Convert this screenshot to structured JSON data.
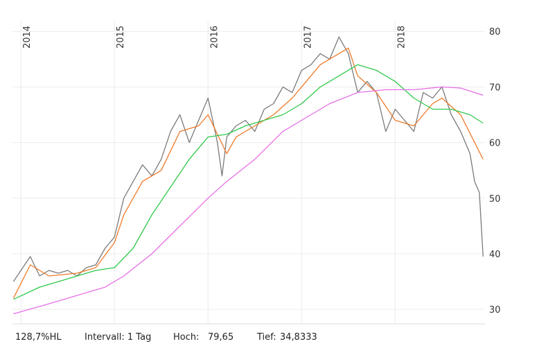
{
  "chart_data": {
    "type": "line",
    "xlim": [
      2013.91,
      2018.96
    ],
    "xticks": [
      2014,
      2015,
      2016,
      2017,
      2018
    ],
    "ylim": [
      27.4,
      81.9
    ],
    "yticks": [
      30,
      40,
      50,
      60,
      70,
      80
    ],
    "grid": true,
    "series": [
      {
        "color": "#7a7a7a",
        "x": [
          2013.92,
          2014.0,
          2014.1,
          2014.2,
          2014.3,
          2014.4,
          2014.5,
          2014.6,
          2014.7,
          2014.8,
          2014.9,
          2015.0,
          2015.1,
          2015.2,
          2015.3,
          2015.4,
          2015.5,
          2015.6,
          2015.7,
          2015.8,
          2015.9,
          2016.0,
          2016.1,
          2016.15,
          2016.2,
          2016.3,
          2016.4,
          2016.5,
          2016.6,
          2016.7,
          2016.8,
          2016.9,
          2017.0,
          2017.1,
          2017.2,
          2017.3,
          2017.4,
          2017.5,
          2017.6,
          2017.7,
          2017.8,
          2017.9,
          2018.0,
          2018.1,
          2018.2,
          2018.3,
          2018.4,
          2018.5,
          2018.6,
          2018.7,
          2018.8,
          2018.85,
          2018.9,
          2018.94
        ],
        "values": [
          35,
          37,
          39.5,
          36,
          37,
          36.5,
          37,
          36,
          37.5,
          38,
          41,
          43,
          50,
          53,
          56,
          54,
          57,
          62,
          65,
          60,
          64,
          68,
          60,
          54,
          61,
          63,
          64,
          62,
          66,
          67,
          70,
          69,
          73,
          74,
          76,
          75,
          79,
          76,
          69,
          71,
          69,
          62,
          66,
          64,
          62,
          69,
          68,
          70,
          65,
          62,
          58,
          53,
          51,
          39.5
        ]
      },
      {
        "color": "#f07a28",
        "x": [
          2013.92,
          2014.1,
          2014.3,
          2014.6,
          2014.8,
          2015.0,
          2015.1,
          2015.3,
          2015.5,
          2015.7,
          2015.9,
          2016.0,
          2016.2,
          2016.3,
          2016.5,
          2016.7,
          2016.9,
          2017.0,
          2017.2,
          2017.4,
          2017.5,
          2017.6,
          2017.8,
          2018.0,
          2018.2,
          2018.4,
          2018.5,
          2018.7,
          2018.85,
          2018.94
        ],
        "values": [
          32,
          38,
          36,
          36.5,
          37.5,
          42,
          47,
          53,
          55,
          62,
          63,
          65,
          58,
          61,
          63,
          65,
          68,
          70,
          74,
          76,
          77,
          72,
          69,
          64,
          63,
          67,
          68,
          65,
          60,
          57
        ]
      },
      {
        "color": "#2ec94a",
        "x": [
          2013.92,
          2014.2,
          2014.5,
          2014.8,
          2015.0,
          2015.2,
          2015.4,
          2015.6,
          2015.8,
          2016.0,
          2016.2,
          2016.4,
          2016.6,
          2016.8,
          2017.0,
          2017.2,
          2017.4,
          2017.6,
          2017.8,
          2018.0,
          2018.2,
          2018.4,
          2018.6,
          2018.8,
          2018.94
        ],
        "values": [
          31.8,
          34,
          35.5,
          37,
          37.5,
          41,
          47,
          52,
          57,
          61,
          61.5,
          63,
          64,
          65,
          67,
          70,
          72,
          74,
          73,
          71,
          68,
          66,
          66,
          65,
          63.5
        ]
      },
      {
        "color": "#e66ee6",
        "x": [
          2013.92,
          2014.3,
          2014.6,
          2014.9,
          2015.1,
          2015.4,
          2015.7,
          2016.0,
          2016.2,
          2016.5,
          2016.8,
          2017.0,
          2017.3,
          2017.6,
          2017.9,
          2018.2,
          2018.5,
          2018.7,
          2018.94
        ],
        "values": [
          29.2,
          31,
          32.5,
          34,
          36,
          40,
          45,
          50,
          53,
          57,
          62,
          64,
          67,
          69,
          69.5,
          69.5,
          70,
          69.8,
          68.5
        ]
      }
    ]
  },
  "footer": {
    "range": "128,7%HL",
    "interval": "Intervall: 1 Tag",
    "high_label": "Hoch:",
    "high": "79,65",
    "low_label": "Tief:",
    "low": "34,8333"
  }
}
